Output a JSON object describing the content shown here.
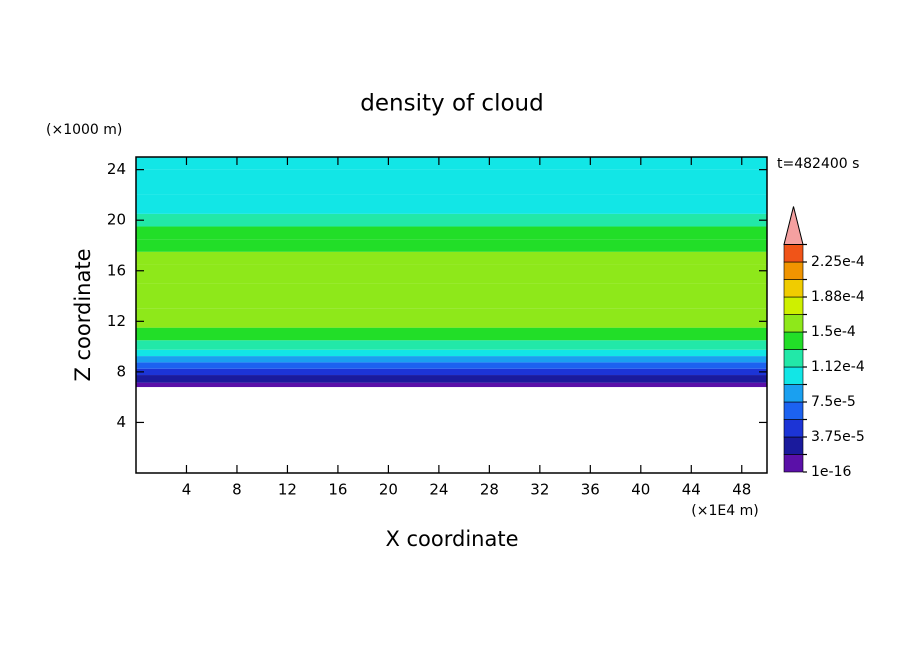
{
  "chart_data": {
    "type": "contour",
    "title": "density of cloud",
    "x_label": "X coordinate",
    "y_label": "Z coordinate",
    "x_unit": "(×1E4 m)",
    "y_unit": "(×1000 m)",
    "annotation": "t=482400 s",
    "xlim": [
      0,
      50
    ],
    "xticks": [
      4,
      8,
      12,
      16,
      20,
      24,
      28,
      32,
      36,
      40,
      44,
      48
    ],
    "ylim": [
      0,
      25
    ],
    "yticks": [
      4,
      8,
      12,
      16,
      20,
      24
    ],
    "profile": {
      "z": [
        6.8,
        7.5,
        8,
        8.5,
        9,
        9.5,
        10,
        11,
        12,
        14,
        16,
        17,
        18,
        19,
        20,
        21,
        23,
        25
      ],
      "values": [
        1e-05,
        2.8e-05,
        4.6e-05,
        6.5e-05,
        8.5e-05,
        0.0001,
        0.00012,
        0.00014,
        0.000155,
        0.000162,
        0.000158,
        0.000152,
        0.00014,
        0.000135,
        0.00012,
        0.000105,
        0.0001,
        9.5e-05
      ]
    },
    "levels": [
      1e-16,
      1.875e-05,
      {
        "value": 3.75e-05,
        "label": "3.75e-5"
      },
      5.625e-05,
      {
        "value": 7.5e-05,
        "label": "7.5e-5"
      },
      9.375e-05,
      {
        "value": 0.0001125,
        "label": "1.12e-4"
      },
      0.00013125,
      {
        "value": 0.00015,
        "label": "1.5e-4"
      },
      0.00016875,
      {
        "value": 0.0001875,
        "label": "1.88e-4"
      },
      0.00020625,
      {
        "value": 0.000225,
        "label": "2.25e-4"
      },
      0.00024375
    ],
    "colors": [
      "#5a10a8",
      "#1a1a9c",
      "#1c34d6",
      "#1c62f0",
      "#1aa0f0",
      "#12e6e6",
      "#22e8a8",
      "#22de28",
      "#8ee81a",
      "#cef000",
      "#f0cc00",
      "#f09400",
      "#f05418"
    ],
    "extend_color": "#f4a0a0"
  }
}
